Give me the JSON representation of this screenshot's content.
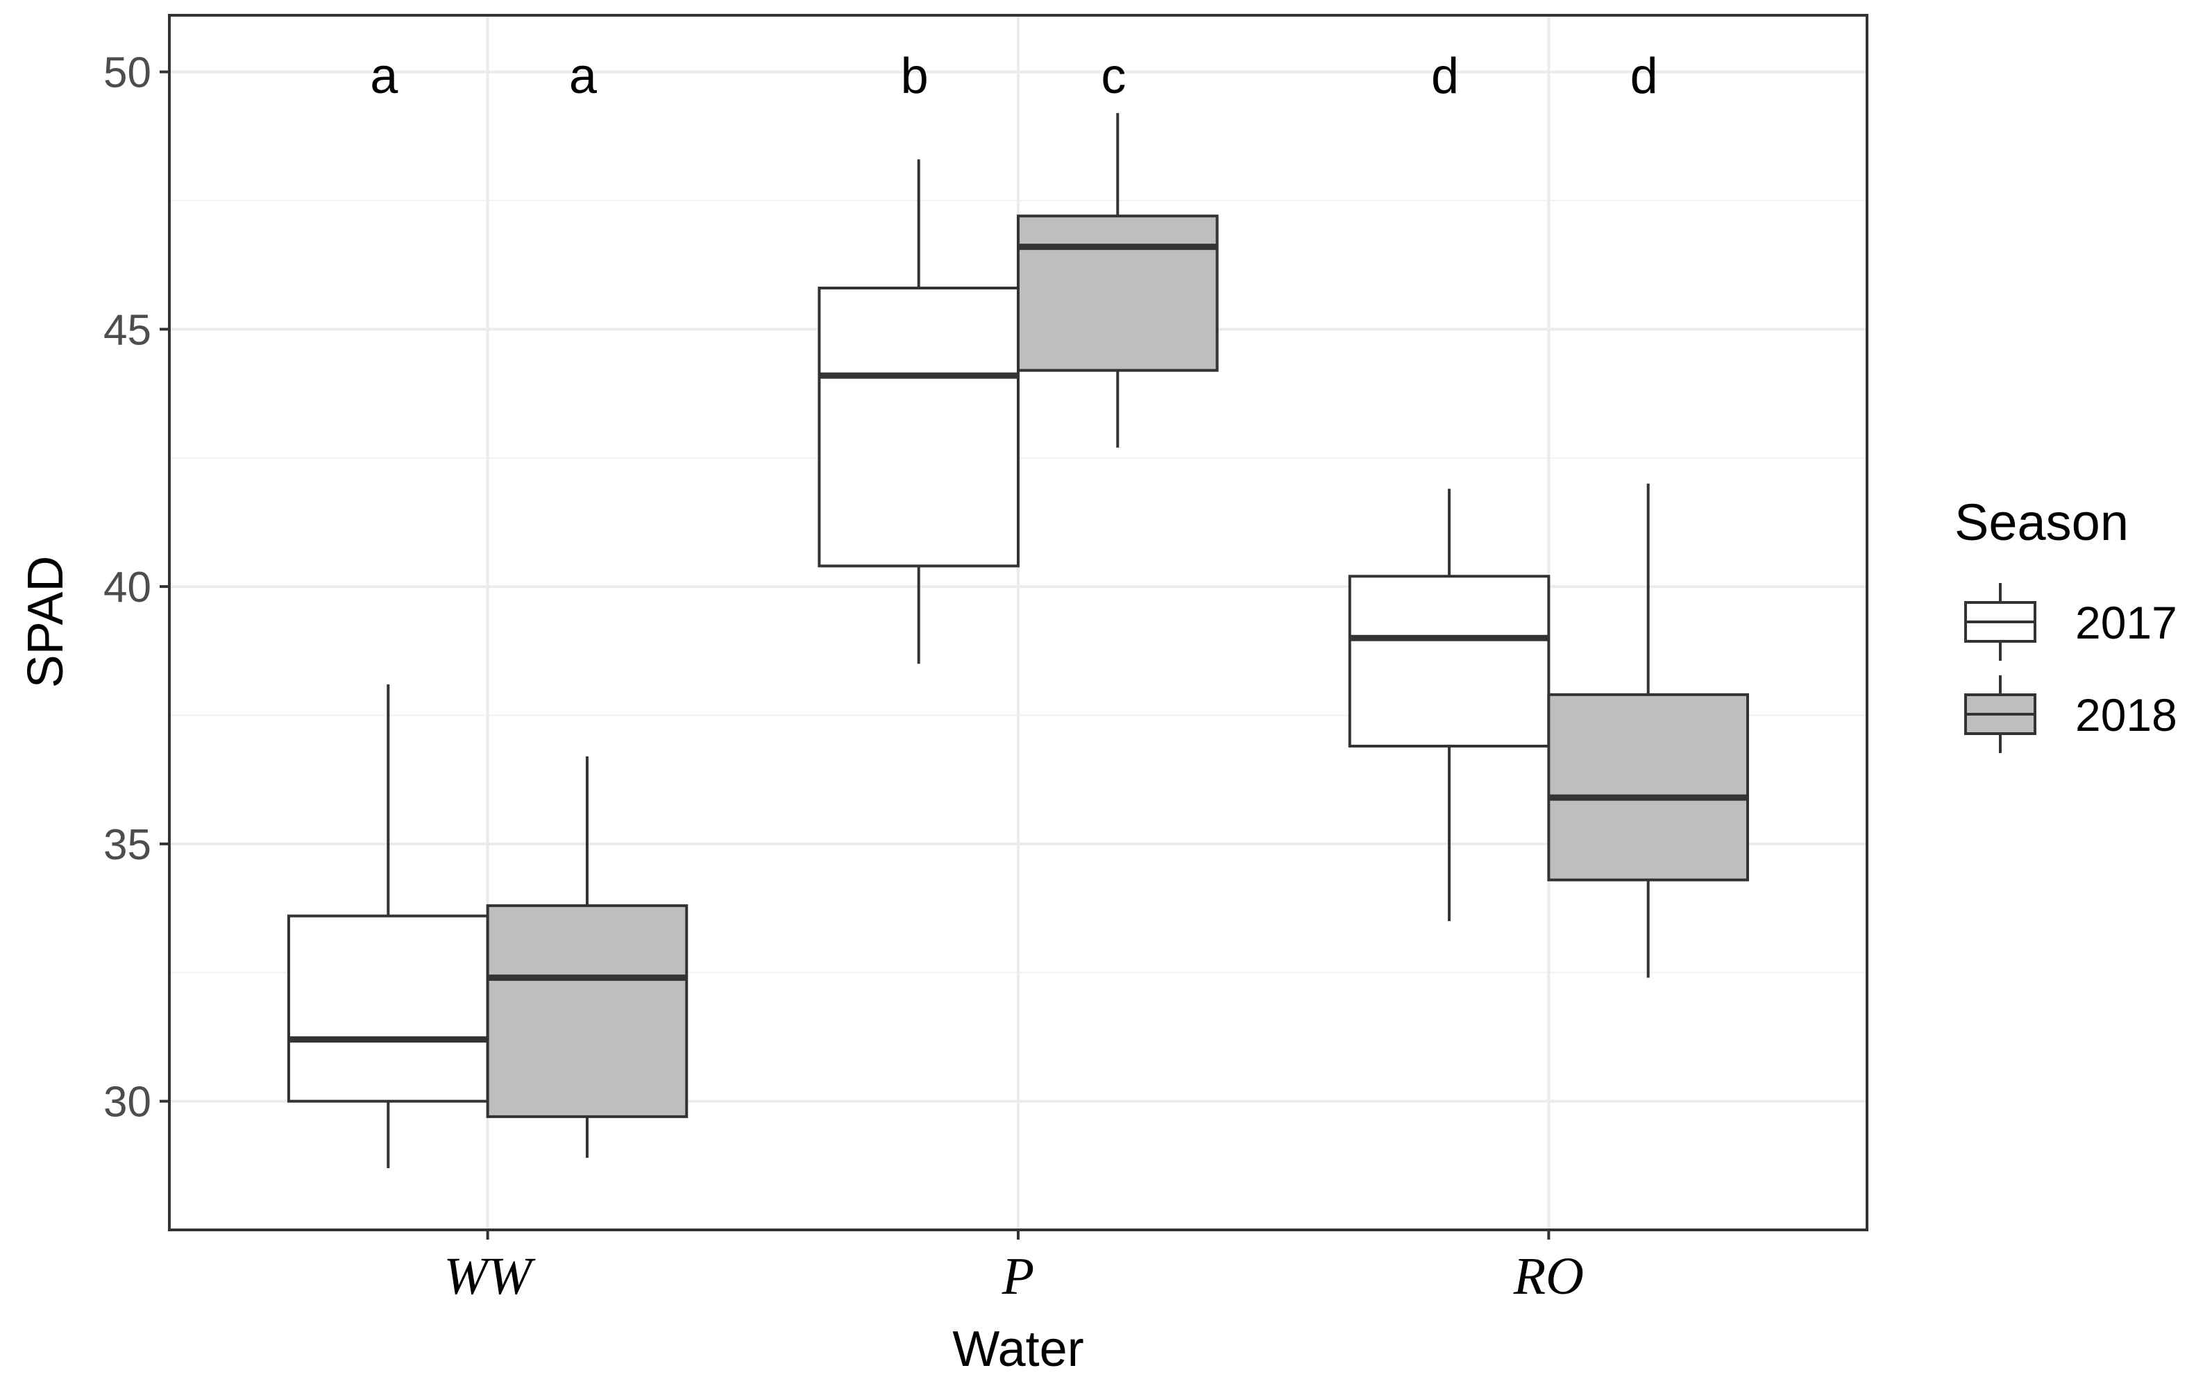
{
  "chart_data": {
    "type": "boxplot",
    "xlabel": "Water",
    "ylabel": "SPAD",
    "ylim": [
      27.5,
      51.1
    ],
    "yticks": [
      30,
      35,
      40,
      45,
      50
    ],
    "grid": true,
    "categories": [
      "WW",
      "P",
      "RO"
    ],
    "legend": {
      "title": "Season",
      "placement": "right",
      "entries": [
        "2017",
        "2018"
      ]
    },
    "series": [
      {
        "name": "2017",
        "fill": "#ffffff",
        "boxes": [
          {
            "category": "WW",
            "min": 28.7,
            "q1": 30.0,
            "median": 31.2,
            "q3": 33.6,
            "max": 38.1,
            "letter": "a"
          },
          {
            "category": "P",
            "min": 38.5,
            "q1": 40.4,
            "median": 44.1,
            "q3": 45.8,
            "max": 48.3,
            "letter": "b"
          },
          {
            "category": "RO",
            "min": 33.5,
            "q1": 36.9,
            "median": 39.0,
            "q3": 40.2,
            "max": 41.9,
            "letter": "d"
          }
        ]
      },
      {
        "name": "2018",
        "fill": "#bebebe",
        "boxes": [
          {
            "category": "WW",
            "min": 28.9,
            "q1": 29.7,
            "median": 32.4,
            "q3": 33.8,
            "max": 36.7,
            "letter": "a"
          },
          {
            "category": "P",
            "min": 42.7,
            "q1": 44.2,
            "median": 46.6,
            "q3": 47.2,
            "max": 49.2,
            "letter": "c"
          },
          {
            "category": "RO",
            "min": 32.4,
            "q1": 34.3,
            "median": 35.9,
            "q3": 37.9,
            "max": 42.0,
            "letter": "d"
          }
        ]
      }
    ]
  }
}
